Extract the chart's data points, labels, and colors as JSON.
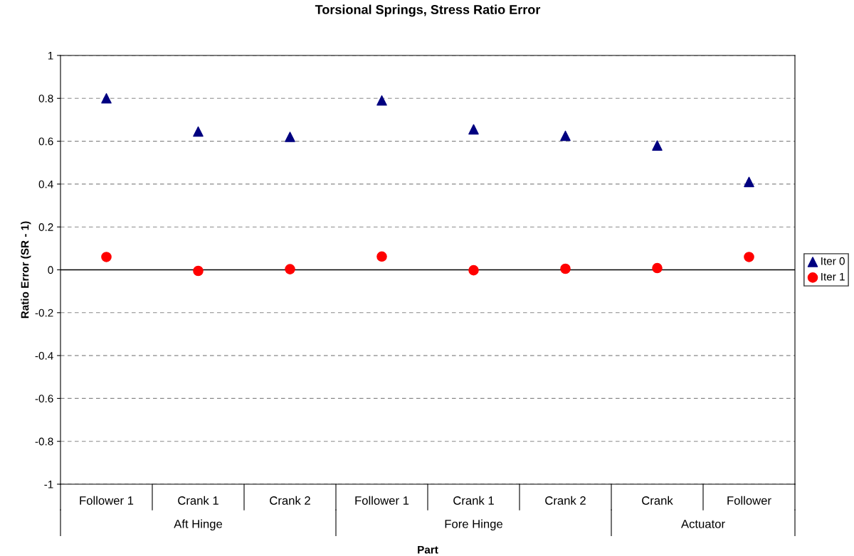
{
  "chart_data": {
    "type": "scatter",
    "title": "Torsional Springs, Stress Ratio Error",
    "xlabel": "Part",
    "ylabel": "Ratio Error (SR - 1)",
    "categories": [
      "Follower 1",
      "Crank 1",
      "Crank 2",
      "Follower 1",
      "Crank 1",
      "Crank 2",
      "Crank",
      "Follower"
    ],
    "series": [
      {
        "name": "Iter 0",
        "color": "#000080",
        "marker": "triangle",
        "values": [
          0.8,
          0.645,
          0.62,
          0.79,
          0.655,
          0.625,
          0.58,
          0.41
        ]
      },
      {
        "name": "Iter 1",
        "color": "#ff0000",
        "marker": "circle",
        "values": [
          0.06,
          -0.005,
          0.003,
          0.062,
          -0.002,
          0.005,
          0.008,
          0.06
        ]
      }
    ],
    "annotations": [
      "Aft Hinge",
      "Fore Hinge",
      "Actuator"
    ],
    "ylim": [
      -1,
      1
    ],
    "yticks": [
      -1,
      -0.8,
      -0.6,
      -0.4,
      -0.2,
      0,
      0.2,
      0.4,
      0.6,
      0.8,
      1
    ],
    "ref_lines": [
      {
        "axis": "y",
        "value": 0,
        "color": "#000000"
      }
    ],
    "grid": "y",
    "legend": "right"
  }
}
